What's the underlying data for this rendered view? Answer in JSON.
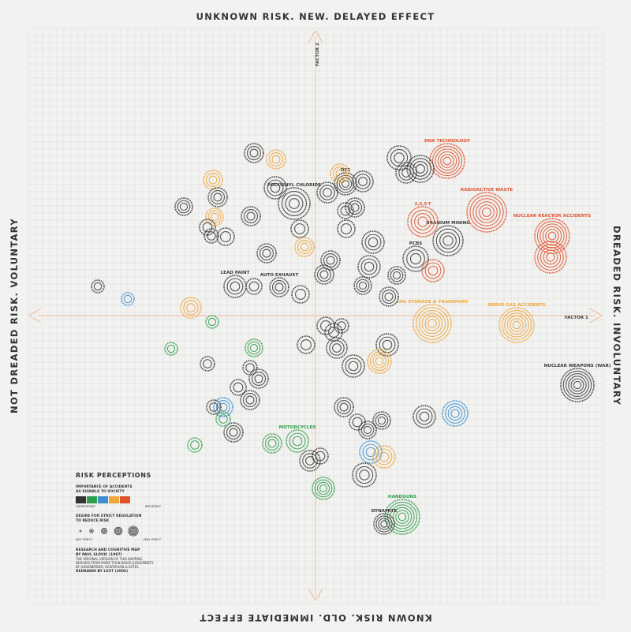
{
  "edges": {
    "top": "UNKNOWN RISK. NEW. DELAYED EFFECT",
    "bottom": "KNOWN RISK. OLD. IMMEDIATE EFFECT",
    "left": "NOT DREADED RISK. VOLUNTARY",
    "right": "DREADED RISK. INVOLUNTARY"
  },
  "axes": {
    "factor1": "FACTOR 1",
    "factor2": "FACTOR 2",
    "color": "#f0b79a"
  },
  "colors": {
    "black": "#3a3a3a",
    "green": "#2f9e4a",
    "blue": "#3b8fd1",
    "orange": "#f0a63a",
    "red": "#e0522e",
    "grid": "#dcdcdc"
  },
  "legend": {
    "title": "RISK PERCEPTIONS",
    "importance_label": [
      "IMPORTANCE OF ACCIDENTS",
      "AS SIGNALS TO SOCIETY"
    ],
    "importance_min": "UNIMPORTANT",
    "importance_max": "IMPORTANT",
    "regulation_label": [
      "DESIRE FOR STRICT REGULATION",
      "TO REDUCE RISK"
    ],
    "regulation_min": "NOT STRICT",
    "regulation_max": "VERY STRICT",
    "credits_title": [
      "RESEARCH AND COGNITIVE MAP",
      "BY PAUL SLOVIC (1987)"
    ],
    "credits_body": [
      "THE ORIGINAL VERSION OF THIS MAPPING",
      "DERIVED FROM MORE THAN 80000 JUDGEMENTS",
      "BY HOHENEMSER, KASPERSON & KATES",
      "REDRAWN BY LUST (2006)"
    ]
  },
  "risks": [
    {
      "label": "DNA TECHNOLOGY",
      "color": "red",
      "rings": 6
    },
    {
      "label": "RADIOACTIVE WASTE",
      "color": "red",
      "rings": 6
    },
    {
      "label": "NUCLEAR REACTOR ACCIDENTS",
      "color": "red",
      "rings": 7
    },
    {
      "label": "URANIUM MINING",
      "color": "black",
      "rings": 4
    },
    {
      "label": "PCBS",
      "color": "black",
      "rings": 3
    },
    {
      "label": "2,4,5-T",
      "color": "red",
      "rings": 4
    },
    {
      "label": "NERVE GAS ACCIDENTS",
      "color": "orange",
      "rings": 6
    },
    {
      "label": "LNG STORAGE & TRANSPORT",
      "color": "orange",
      "rings": 6
    },
    {
      "label": "NUCLEAR WEAPONS (WAR)",
      "color": "black",
      "rings": 6
    },
    {
      "label": "HANDGUNS",
      "color": "green",
      "rings": 6
    },
    {
      "label": "DYNAMITE",
      "color": "black",
      "rings": 4
    },
    {
      "label": "MOTORCYCLES",
      "color": "green",
      "rings": 4
    },
    {
      "label": "AUTO EXHAUST",
      "color": "black",
      "rings": 3
    },
    {
      "label": "LEAD PAINT",
      "color": "black",
      "rings": 3
    },
    {
      "label": "POLYVINYL CHLORIDE",
      "color": "black",
      "rings": 4
    },
    {
      "label": "DES",
      "color": "black",
      "rings": 4
    }
  ]
}
